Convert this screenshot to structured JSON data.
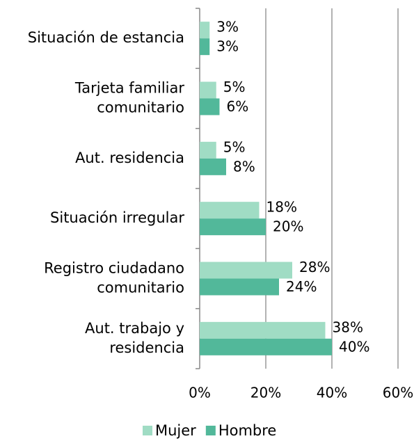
{
  "chart_data": {
    "type": "bar",
    "orientation": "horizontal",
    "categories": [
      "Situación de estancia",
      "Tarjeta familiar\ncomunitario",
      "Aut. residencia",
      "Situación irregular",
      "Registro ciudadano\ncomunitario",
      "Aut. trabajo y\nresidencia"
    ],
    "series": [
      {
        "name": "Mujer",
        "color": "#a0dcc4",
        "values": [
          3,
          5,
          5,
          18,
          28,
          38
        ],
        "value_labels": [
          "3%",
          "5%",
          "5%",
          "18%",
          "28%",
          "38%"
        ]
      },
      {
        "name": "Hombre",
        "color": "#52b89a",
        "values": [
          3,
          6,
          8,
          20,
          24,
          40
        ],
        "value_labels": [
          "3%",
          "6%",
          "8%",
          "20%",
          "24%",
          "40%"
        ]
      }
    ],
    "xlim": [
      0,
      60
    ],
    "xticks": [
      {
        "value": 0,
        "label": "0%"
      },
      {
        "value": 20,
        "label": "20%"
      },
      {
        "value": 40,
        "label": "40%"
      },
      {
        "value": 60,
        "label": "60%"
      }
    ],
    "grid": true,
    "legend": "bottom"
  }
}
